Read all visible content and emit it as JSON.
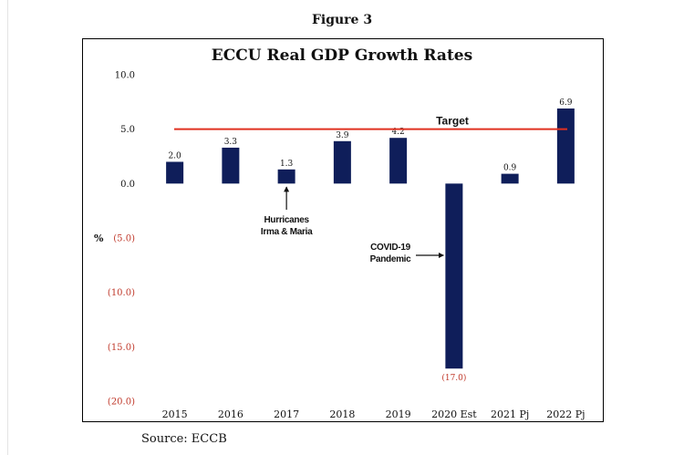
{
  "figure_label": "Figure 3",
  "source": "Source: ECCB",
  "colors": {
    "bar": "#0f1e5a",
    "target_line": "#e03020",
    "negative_tick": "#c0392b",
    "positive_tick": "#111111"
  },
  "chart_data": {
    "type": "bar",
    "title": "ECCU Real GDP Growth Rates",
    "ylabel": "%",
    "xlabel": "",
    "ylim": [
      -20,
      10
    ],
    "yticks": [
      10,
      5,
      0,
      -5,
      -10,
      -15,
      -20
    ],
    "ytick_labels": [
      "10.0",
      "5.0",
      "0.0",
      "(5.0)",
      "(10.0)",
      "(15.0)",
      "(20.0)"
    ],
    "grid": false,
    "categories": [
      "2015",
      "2016",
      "2017",
      "2018",
      "2019",
      "2020 Est",
      "2021 Pj",
      "2022 Pj"
    ],
    "values": [
      2.0,
      3.3,
      1.3,
      3.9,
      4.2,
      -17.0,
      0.9,
      6.9
    ],
    "data_labels": [
      "2.0",
      "3.3",
      "1.3",
      "3.9",
      "4.2",
      "(17.0)",
      "0.9",
      "6.9"
    ],
    "target": {
      "label": "Target",
      "value": 5.0
    },
    "annotations": [
      {
        "lines": [
          "Hurricanes",
          "Irma & Maria"
        ],
        "category": "2017"
      },
      {
        "lines": [
          "COVID-19",
          "Pandemic"
        ],
        "category": "2020 Est"
      }
    ]
  }
}
